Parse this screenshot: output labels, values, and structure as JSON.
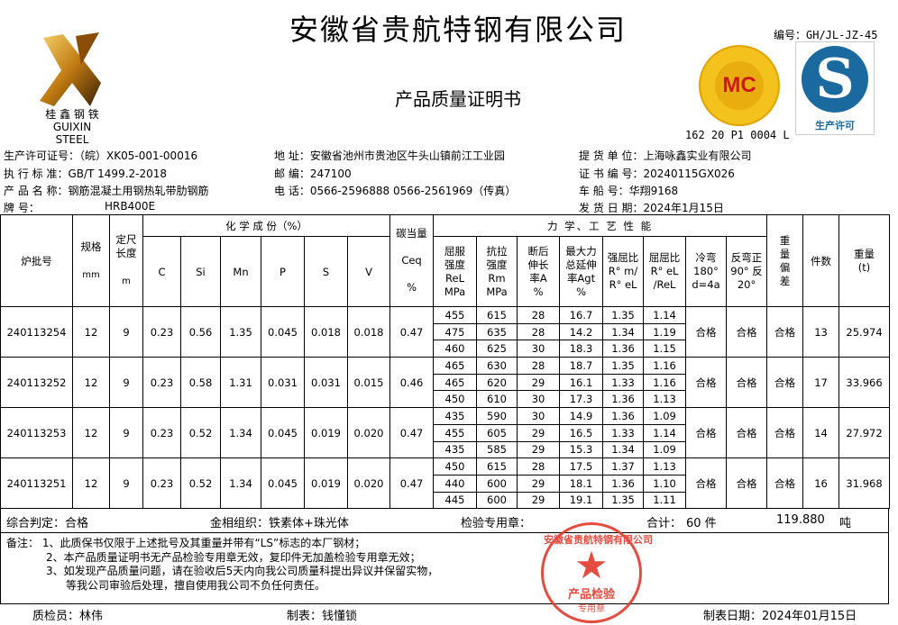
{
  "header": {
    "title": "安徽省贵航特钢有限公司",
    "subtitle": "产品质量证明书",
    "code": "编号：GH/JL-JZ-45",
    "logo_text": "桂 鑫 钢 铁",
    "logo_text_en": "GUIXIN STEEL",
    "mc_label": "MC",
    "mc_code": "162 20 P1 0004 L",
    "qs_label": "生产许可"
  },
  "info": {
    "license": "生产许可证号：（皖）XK05-001-00016",
    "standard": "执 行 标 准：GB/T 1499.2-2018",
    "product": "产 品 名 称：钢筋混凝土用钢热轧带肋钢筋",
    "grade_label": "牌      号：",
    "grade": "HRB400E",
    "address": "地   址：安徽省池州市贵池区牛头山镇前江工业园",
    "postcode": "邮   编：247100",
    "phone": "电   话：0566-2596888  0566-2561969（传真）",
    "consignee": "提 货 单 位：上海咏鑫实业有限公司",
    "cert_no": "证 书 编 号：20240115GX026",
    "vehicle": "车   船   号：华翔9168",
    "ship_date": "发 货 日 期：2024年1月15日"
  },
  "table": {
    "h_batch": "炉批号",
    "h_spec": "规格",
    "h_spec_unit": "mm",
    "h_length": "定尺长度",
    "h_length_unit": "m",
    "h_chem": "化 学 成 份（%）",
    "h_c": "C",
    "h_si": "Si",
    "h_mn": "Mn",
    "h_p": "P",
    "h_s": "S",
    "h_v": "V",
    "h_ceq": "碳当量",
    "h_ceq2": "Ceq",
    "h_ceq3": "%",
    "h_mech": "力 学、工 艺 性 能",
    "h_rel": "屈服强度ReL MPa",
    "h_rm": "抗拉强度Rm MPa",
    "h_a": "断后伸长率A %",
    "h_agt": "最大力总延伸率Agt %",
    "h_ratio1": "强屈比R° m/ R° eL",
    "h_ratio2": "屈屈比R° eL /ReL",
    "h_bend": "冷弯180° d=4a",
    "h_rebend": "反弯正90° 反20°",
    "h_dev": "重量偏差",
    "h_count": "件数",
    "h_weight": "重量(t)",
    "rows": [
      {
        "batch": "240113254",
        "spec": "12",
        "length": "9",
        "c": "0.23",
        "si": "0.56",
        "mn": "1.35",
        "p": "0.045",
        "s": "0.018",
        "v": "0.018",
        "ceq": "0.47",
        "mech": [
          [
            "455",
            "615",
            "28",
            "16.7",
            "1.35",
            "1.14"
          ],
          [
            "475",
            "635",
            "28",
            "14.2",
            "1.34",
            "1.19"
          ],
          [
            "460",
            "625",
            "30",
            "18.3",
            "1.36",
            "1.15"
          ]
        ],
        "bend": "合格",
        "rebend": "合格",
        "dev": "合格",
        "count": "13",
        "weight": "25.974"
      },
      {
        "batch": "240113252",
        "spec": "12",
        "length": "9",
        "c": "0.23",
        "si": "0.58",
        "mn": "1.31",
        "p": "0.031",
        "s": "0.031",
        "v": "0.015",
        "ceq": "0.46",
        "mech": [
          [
            "465",
            "630",
            "28",
            "18.7",
            "1.35",
            "1.16"
          ],
          [
            "465",
            "620",
            "29",
            "16.1",
            "1.33",
            "1.16"
          ],
          [
            "450",
            "610",
            "30",
            "17.3",
            "1.36",
            "1.13"
          ]
        ],
        "bend": "合格",
        "rebend": "合格",
        "dev": "合格",
        "count": "17",
        "weight": "33.966"
      },
      {
        "batch": "240113253",
        "spec": "12",
        "length": "9",
        "c": "0.23",
        "si": "0.52",
        "mn": "1.34",
        "p": "0.045",
        "s": "0.019",
        "v": "0.020",
        "ceq": "0.47",
        "mech": [
          [
            "435",
            "590",
            "30",
            "14.9",
            "1.36",
            "1.09"
          ],
          [
            "455",
            "605",
            "29",
            "16.5",
            "1.33",
            "1.14"
          ],
          [
            "435",
            "585",
            "29",
            "15.3",
            "1.34",
            "1.09"
          ]
        ],
        "bend": "合格",
        "rebend": "合格",
        "dev": "合格",
        "count": "14",
        "weight": "27.972"
      },
      {
        "batch": "240113251",
        "spec": "12",
        "length": "9",
        "c": "0.23",
        "si": "0.52",
        "mn": "1.34",
        "p": "0.045",
        "s": "0.019",
        "v": "0.020",
        "ceq": "0.47",
        "mech": [
          [
            "450",
            "615",
            "28",
            "17.5",
            "1.37",
            "1.13"
          ],
          [
            "440",
            "600",
            "29",
            "18.1",
            "1.36",
            "1.10"
          ],
          [
            "445",
            "600",
            "29",
            "19.1",
            "1.35",
            "1.11"
          ]
        ],
        "bend": "合格",
        "rebend": "合格",
        "dev": "合格",
        "count": "16",
        "weight": "31.968"
      }
    ]
  },
  "summary": {
    "judgement": "综合判定：合格",
    "structure": "金相组织：铁素体+珠光体",
    "stamp_label": "检验专用章：",
    "total_label": "合计：",
    "total_count": "60 件",
    "total_weight": "119.880",
    "weight_unit": "吨"
  },
  "remarks": {
    "label": "备注：",
    "lines": [
      "1、此质保书仅限于上述批号及其重量并带有“LS”标志的本厂钢材；",
      "2、本产品质量证明书无产品检验专用章无效，复印件无加盖检验专用章无效；",
      "3、如发现产品质量问题，请在验收后5天内向我公司质量科提出异议并保留实物，",
      "等我公司审验后处理，擅自使用我公司不负任何责任。"
    ]
  },
  "seal": {
    "company": "安徽省贵航特钢有限公司",
    "center": "产品检验",
    "bottom": "专用章",
    "color": "#e2392b"
  },
  "footer": {
    "inspector": "质检员：林伟",
    "preparer": "制表：钱懂锁",
    "date": "制表日期：2024年01月15日"
  }
}
